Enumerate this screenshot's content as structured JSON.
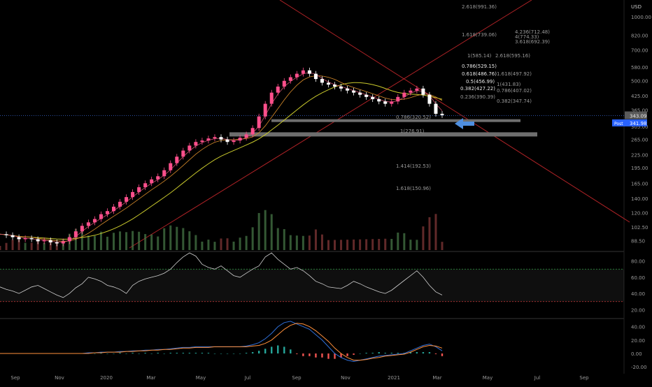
{
  "chart_data": {
    "type": "line",
    "currency": "USD",
    "price_axis": {
      "scale": "log",
      "range": [
        80,
        1200
      ],
      "ticks": [
        "88.50",
        "102.50",
        "120.00",
        "140.00",
        "165.00",
        "195.00",
        "225.00",
        "265.00",
        "305.00",
        "365.00",
        "425.00",
        "500.00",
        "580.00",
        "700.00",
        "820.00",
        "1000.00"
      ]
    },
    "time_axis": {
      "labels": [
        "Sep",
        "Nov",
        "2020",
        "Mar",
        "May",
        "Jul",
        "Sep",
        "Nov",
        "2021",
        "Mar",
        "May",
        "Jul",
        "Sep"
      ]
    },
    "price_series_close": [
      95,
      94,
      92,
      90,
      91,
      90,
      88,
      89,
      87,
      86,
      88,
      92,
      98,
      104,
      108,
      112,
      118,
      122,
      128,
      135,
      142,
      150,
      158,
      165,
      172,
      178,
      190,
      205,
      220,
      235,
      248,
      258,
      262,
      268,
      272,
      265,
      258,
      262,
      270,
      280,
      300,
      340,
      390,
      440,
      470,
      500,
      520,
      540,
      560,
      540,
      510,
      490,
      480,
      470,
      460,
      450,
      440,
      430,
      420,
      410,
      400,
      390,
      400,
      420,
      440,
      450,
      460,
      430,
      390,
      350,
      345
    ],
    "last_price": {
      "label": "343.09"
    },
    "post_market": {
      "tag": "Post",
      "price": "341.98"
    },
    "fib_labels": [
      "2.618(991.36)",
      "1.618(739.06)",
      "4.236(712.48)",
      "4(774.33)",
      "3.618(692.39)",
      "1(585.14)",
      "2.618(595.16)",
      "0.786(529.15)",
      "0.618(486.76)",
      "1.618(497.92)",
      "0.5(456.99)",
      "0.382(427.22)",
      "0.236(390.39)",
      "1(431.83)",
      "0.786(407.02)",
      "0.382(347.74)",
      "0.786(320.52)",
      "1(276.91)",
      "1.414(192.53)",
      "1.618(150.96)"
    ],
    "rsi": {
      "ticks": [
        "80.00",
        "60.00",
        "40.00",
        "20.00"
      ],
      "upper_band": 70,
      "lower_band": 30,
      "values": [
        48,
        45,
        43,
        40,
        44,
        48,
        50,
        46,
        42,
        38,
        35,
        40,
        47,
        52,
        60,
        58,
        55,
        50,
        48,
        45,
        40,
        50,
        55,
        58,
        60,
        62,
        65,
        70,
        78,
        85,
        90,
        86,
        76,
        72,
        70,
        74,
        68,
        62,
        60,
        65,
        70,
        74,
        85,
        90,
        82,
        76,
        70,
        72,
        68,
        62,
        55,
        52,
        48,
        47,
        46,
        50,
        55,
        52,
        48,
        45,
        42,
        40,
        44,
        50,
        56,
        62,
        68,
        60,
        50,
        42,
        38
      ]
    },
    "macd": {
      "ticks": [
        "40.00",
        "20.00",
        "0.00",
        "-20.00"
      ],
      "macd_line": [
        0,
        0,
        0,
        0,
        0,
        0,
        0,
        0,
        0,
        0,
        0,
        0,
        0,
        0,
        1,
        1,
        2,
        2,
        2,
        3,
        3,
        4,
        4,
        5,
        5,
        6,
        6,
        7,
        8,
        9,
        9,
        10,
        10,
        10,
        10,
        10,
        10,
        10,
        10,
        11,
        13,
        16,
        22,
        30,
        40,
        46,
        48,
        44,
        40,
        36,
        28,
        20,
        10,
        0,
        -6,
        -10,
        -12,
        -10,
        -8,
        -6,
        -4,
        -3,
        -2,
        -1,
        0,
        4,
        8,
        12,
        14,
        10,
        4
      ],
      "signal_line": [
        0,
        0,
        0,
        0,
        0,
        0,
        0,
        0,
        0,
        0,
        0,
        0,
        0,
        0,
        0,
        1,
        1,
        2,
        2,
        2,
        3,
        3,
        4,
        4,
        5,
        5,
        6,
        6,
        7,
        8,
        8,
        9,
        9,
        9,
        10,
        10,
        10,
        10,
        10,
        10,
        11,
        12,
        15,
        20,
        28,
        36,
        42,
        45,
        44,
        40,
        34,
        26,
        18,
        8,
        0,
        -6,
        -10,
        -10,
        -9,
        -7,
        -6,
        -4,
        -3,
        -2,
        -1,
        2,
        6,
        10,
        12,
        11,
        8
      ]
    },
    "colors": {
      "background": "#000000",
      "up": "#ff4f8c",
      "down": "#ffffff",
      "trendline": "#c0262a",
      "ma_yellow": "#c9c92c",
      "ma_orange": "#d98c2b",
      "rsi_line": "#d0d0d0",
      "macd_blue": "#2f6fd8",
      "signal_orange": "#ff8f3a",
      "price_tag": "#2962ff",
      "arrow": "#4f8fe0"
    },
    "grid": false
  }
}
